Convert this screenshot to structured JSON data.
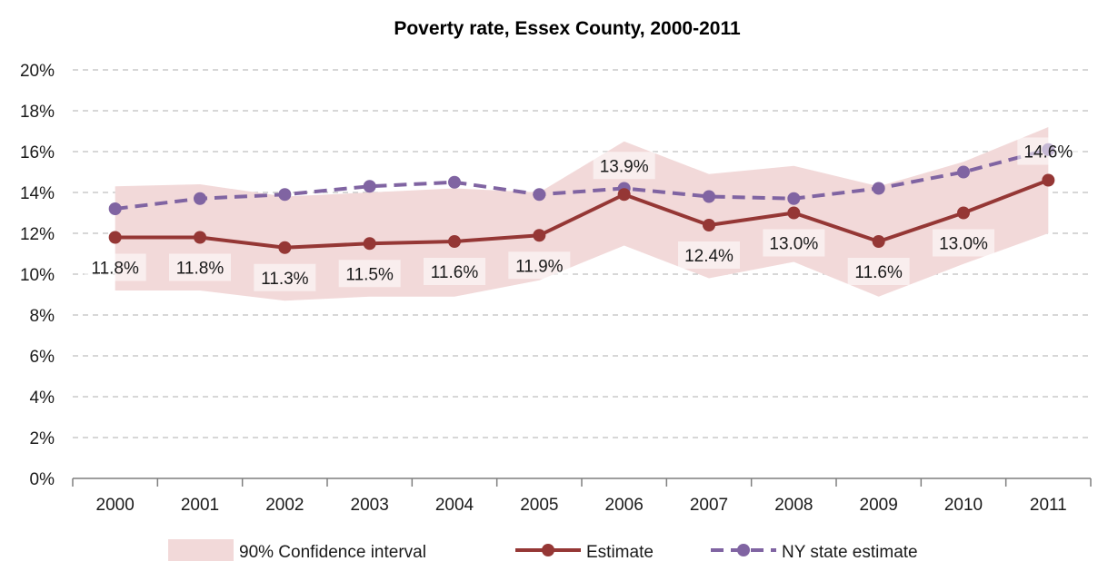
{
  "chart_data": {
    "type": "line",
    "title": "Poverty rate, Essex County, 2000-2011",
    "xlabel": "",
    "ylabel": "",
    "categories": [
      "2000",
      "2001",
      "2002",
      "2003",
      "2004",
      "2005",
      "2006",
      "2007",
      "2008",
      "2009",
      "2010",
      "2011"
    ],
    "ylim": [
      0,
      20
    ],
    "yticks": [
      0,
      2,
      4,
      6,
      8,
      10,
      12,
      14,
      16,
      18,
      20
    ],
    "ytick_labels": [
      "0%",
      "2%",
      "4%",
      "6%",
      "8%",
      "10%",
      "12%",
      "14%",
      "16%",
      "18%",
      "20%"
    ],
    "grid": true,
    "legend_position": "bottom",
    "confidence_interval": {
      "name": "90% Confidence interval",
      "color": "#f2d9d9",
      "lower": [
        9.2,
        9.2,
        8.7,
        8.9,
        8.9,
        9.7,
        11.4,
        9.8,
        10.6,
        8.9,
        10.5,
        12.0
      ],
      "upper": [
        14.3,
        14.4,
        13.8,
        14.0,
        14.2,
        14.0,
        16.5,
        14.9,
        15.3,
        14.3,
        15.5,
        17.2
      ]
    },
    "series": [
      {
        "name": "Estimate",
        "color": "#953735",
        "style": "solid",
        "values": [
          11.8,
          11.8,
          11.3,
          11.5,
          11.6,
          11.9,
          13.9,
          12.4,
          13.0,
          11.6,
          13.0,
          14.6
        ],
        "data_labels": [
          "11.8%",
          "11.8%",
          "11.3%",
          "11.5%",
          "11.6%",
          "11.9%",
          "13.9%",
          "12.4%",
          "13.0%",
          "11.6%",
          "13.0%",
          "14.6%"
        ]
      },
      {
        "name": "NY state estimate",
        "color": "#8064a2",
        "style": "dashed",
        "values": [
          13.2,
          13.7,
          13.9,
          14.3,
          14.5,
          13.9,
          14.2,
          13.8,
          13.7,
          14.2,
          15.0,
          16.1
        ]
      }
    ]
  }
}
